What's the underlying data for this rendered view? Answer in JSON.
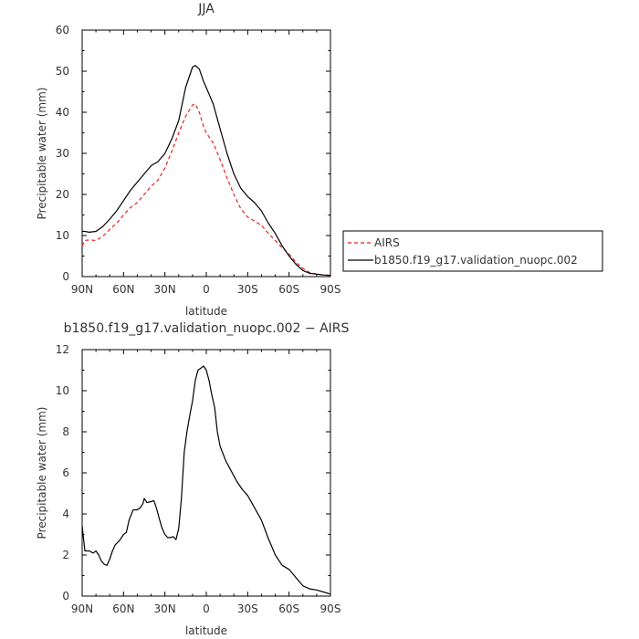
{
  "chart_data": [
    {
      "type": "line",
      "title": "JJA",
      "xlabel": "latitude",
      "ylabel": "Precipitable water (mm)",
      "xlim": [
        90,
        -90
      ],
      "ylim": [
        0,
        60
      ],
      "x_ticks": [
        90,
        60,
        30,
        0,
        -30,
        -60,
        -90
      ],
      "x_tick_labels": [
        "90N",
        "60N",
        "30N",
        "0",
        "30S",
        "60S",
        "90S"
      ],
      "y_ticks": [
        0,
        10,
        20,
        30,
        40,
        50,
        60
      ],
      "y_tick_labels": [
        "0",
        "10",
        "20",
        "30",
        "40",
        "50",
        "60"
      ],
      "legend_position": "outside-right",
      "series": [
        {
          "name": "AIRS",
          "color": "#e8221b",
          "dash": "dashed",
          "x": [
            90,
            88,
            85,
            80,
            75,
            70,
            65,
            60,
            55,
            50,
            45,
            40,
            35,
            30,
            25,
            20,
            15,
            10,
            8,
            5,
            2,
            0,
            -5,
            -10,
            -15,
            -20,
            -25,
            -30,
            -35,
            -40,
            -45,
            -50,
            -55,
            -60,
            -65,
            -70,
            -75,
            -80,
            -85,
            -90
          ],
          "y": [
            7.5,
            8.8,
            8.9,
            8.8,
            9.8,
            11.5,
            13.0,
            15.0,
            16.8,
            18.0,
            20.0,
            22.0,
            23.5,
            26.5,
            30.5,
            35.0,
            39.0,
            41.8,
            42.0,
            40.0,
            36.5,
            35.0,
            32.5,
            28.5,
            24.0,
            20.0,
            16.5,
            14.5,
            13.5,
            12.5,
            10.5,
            8.8,
            7.0,
            5.5,
            3.5,
            2.0,
            1.0,
            0.6,
            0.4,
            0.2
          ]
        },
        {
          "name": "b1850.f19_g17.validation_nuopc.002",
          "color": "#000000",
          "dash": "solid",
          "x": [
            90,
            88,
            85,
            80,
            75,
            70,
            65,
            60,
            55,
            50,
            45,
            40,
            35,
            30,
            25,
            20,
            15,
            10,
            8,
            5,
            2,
            0,
            -5,
            -10,
            -15,
            -20,
            -25,
            -30,
            -35,
            -40,
            -45,
            -50,
            -55,
            -60,
            -65,
            -70,
            -75,
            -80,
            -85,
            -90
          ],
          "y": [
            11.0,
            11.0,
            10.8,
            11.0,
            12.2,
            14.0,
            16.0,
            18.5,
            21.0,
            23.0,
            25.0,
            27.0,
            28.0,
            30.0,
            33.5,
            38.0,
            46.0,
            51.0,
            51.4,
            50.5,
            47.5,
            46.0,
            42.0,
            36.0,
            30.0,
            25.0,
            21.5,
            19.5,
            18.0,
            16.0,
            13.0,
            10.5,
            7.5,
            5.0,
            3.0,
            1.5,
            0.8,
            0.6,
            0.4,
            0.3
          ]
        }
      ]
    },
    {
      "type": "line",
      "title": "b1850.f19_g17.validation_nuopc.002 − AIRS",
      "xlabel": "latitude",
      "ylabel": "Precipitable water (mm)",
      "xlim": [
        90,
        -90
      ],
      "ylim": [
        0,
        12
      ],
      "x_ticks": [
        90,
        60,
        30,
        0,
        -30,
        -60,
        -90
      ],
      "x_tick_labels": [
        "90N",
        "60N",
        "30N",
        "0",
        "30S",
        "60S",
        "90S"
      ],
      "y_ticks": [
        0,
        2,
        4,
        6,
        8,
        10,
        12
      ],
      "y_tick_labels": [
        "0",
        "2",
        "4",
        "6",
        "8",
        "10",
        "12"
      ],
      "series": [
        {
          "color": "#000000",
          "dash": "solid",
          "x": [
            90,
            89,
            88,
            85,
            82,
            80,
            78,
            76,
            74,
            72,
            70,
            68,
            66,
            63,
            60,
            58,
            56,
            53,
            50,
            48,
            46,
            45,
            43,
            40,
            38,
            36,
            34,
            32,
            30,
            28,
            26,
            24,
            22,
            20,
            18,
            16,
            14,
            12,
            10,
            8,
            6,
            4,
            2,
            0,
            -2,
            -4,
            -6,
            -8,
            -10,
            -14,
            -18,
            -22,
            -26,
            -30,
            -35,
            -40,
            -45,
            -50,
            -55,
            -60,
            -65,
            -70,
            -75,
            -80,
            -85,
            -90
          ],
          "y": [
            3.4,
            2.8,
            2.2,
            2.2,
            2.1,
            2.2,
            2.0,
            1.7,
            1.55,
            1.5,
            1.8,
            2.2,
            2.5,
            2.7,
            3.0,
            3.1,
            3.7,
            4.2,
            4.2,
            4.3,
            4.5,
            4.75,
            4.55,
            4.6,
            4.65,
            4.25,
            3.75,
            3.3,
            3.0,
            2.85,
            2.85,
            2.9,
            2.75,
            3.3,
            4.8,
            7.0,
            8.0,
            8.8,
            9.5,
            10.5,
            11.0,
            11.1,
            11.2,
            11.0,
            10.5,
            9.8,
            9.2,
            8.0,
            7.3,
            6.6,
            6.1,
            5.6,
            5.2,
            4.9,
            4.3,
            3.7,
            2.8,
            2.0,
            1.5,
            1.3,
            0.9,
            0.5,
            0.35,
            0.3,
            0.2,
            0.1
          ]
        }
      ]
    }
  ]
}
